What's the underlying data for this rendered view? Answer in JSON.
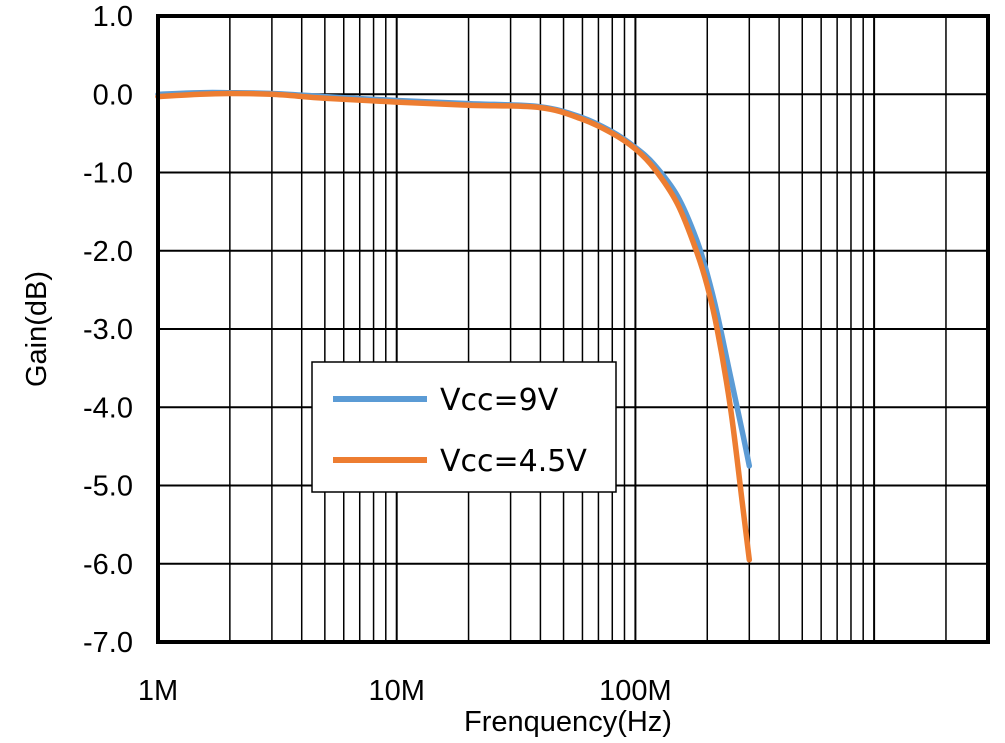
{
  "chart_data": {
    "type": "line",
    "title": "",
    "xlabel": "Frenquency(Hz)",
    "ylabel": "Gain(dB)",
    "xscale": "log",
    "xlim": [
      1000000,
      3000000000
    ],
    "ylim": [
      -7.0,
      1.0
    ],
    "grid": true,
    "x_ticks": [
      {
        "value": 1000000,
        "label": "1M"
      },
      {
        "value": 10000000,
        "label": "10M"
      },
      {
        "value": 100000000,
        "label": "100M"
      }
    ],
    "y_ticks": [
      {
        "value": 1.0,
        "label": "1.0"
      },
      {
        "value": 0.0,
        "label": "0.0"
      },
      {
        "value": -1.0,
        "label": "-1.0"
      },
      {
        "value": -2.0,
        "label": "-2.0"
      },
      {
        "value": -3.0,
        "label": "-3.0"
      },
      {
        "value": -4.0,
        "label": "-4.0"
      },
      {
        "value": -5.0,
        "label": "-5.0"
      },
      {
        "value": -6.0,
        "label": "-6.0"
      },
      {
        "value": -7.0,
        "label": "-7.0"
      }
    ],
    "legend_position": "center-left",
    "series": [
      {
        "name": "Vcc=9V",
        "color": "#5b9bd5",
        "x": [
          1000000,
          1500000,
          2000000,
          3000000,
          5000000,
          10000000,
          20000000,
          40000000,
          60000000,
          80000000,
          100000000,
          120000000,
          150000000,
          180000000,
          200000000,
          220000000,
          250000000,
          280000000,
          300000000
        ],
        "y": [
          0.0,
          0.02,
          0.02,
          0.01,
          -0.03,
          -0.08,
          -0.12,
          -0.16,
          -0.3,
          -0.48,
          -0.68,
          -0.9,
          -1.3,
          -1.85,
          -2.3,
          -2.8,
          -3.6,
          -4.3,
          -4.75
        ]
      },
      {
        "name": "Vcc=4.5V",
        "color": "#ed7d31",
        "x": [
          1000000,
          1500000,
          2000000,
          3000000,
          5000000,
          10000000,
          20000000,
          40000000,
          60000000,
          80000000,
          100000000,
          120000000,
          150000000,
          180000000,
          200000000,
          220000000,
          250000000,
          280000000,
          300000000
        ],
        "y": [
          -0.03,
          0.0,
          0.01,
          0.0,
          -0.05,
          -0.1,
          -0.14,
          -0.17,
          -0.32,
          -0.5,
          -0.7,
          -0.95,
          -1.4,
          -2.0,
          -2.45,
          -3.0,
          -4.0,
          -5.2,
          -5.95
        ]
      }
    ]
  }
}
